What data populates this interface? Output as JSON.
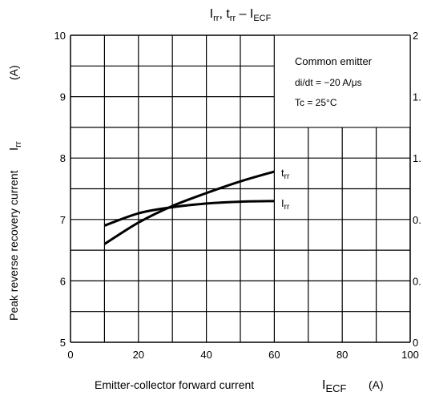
{
  "chart_data": {
    "type": "line",
    "title": {
      "main": "I",
      "sub1": "rr",
      "mid": ", t",
      "sub2": "rr",
      "dash": " – I",
      "sub3": "ECF"
    },
    "xlabel": {
      "text": "Emitter-collector forward current",
      "sym": "I",
      "sub": "ECF",
      "unit": "(A)"
    },
    "ylabel": {
      "text": "Peak reverse recovery current",
      "sym": "I",
      "sub": "rr",
      "unit": "(A)"
    },
    "xlim": [
      0,
      100
    ],
    "ylim": [
      5,
      10
    ],
    "x_ticks": [
      "0",
      "20",
      "40",
      "60",
      "80",
      "100"
    ],
    "y_ticks": [
      "5",
      "6",
      "7",
      "8",
      "9",
      "10"
    ],
    "right_ticks_visible": [
      "0",
      "0.",
      "0.",
      "1.",
      "1.",
      "2"
    ],
    "grid": true,
    "annotation": {
      "line1": "Common emitter",
      "line2": "di/dt = −20 A/μs",
      "line3": "Tc = 25°C"
    },
    "series": [
      {
        "name": "t",
        "name_sub": "rr",
        "x": [
          10,
          20,
          30,
          40,
          50,
          60
        ],
        "y": [
          6.6,
          6.95,
          7.22,
          7.43,
          7.62,
          7.78
        ]
      },
      {
        "name": "I",
        "name_sub": "rr",
        "x": [
          10,
          20,
          30,
          40,
          50,
          60
        ],
        "y": [
          6.9,
          7.1,
          7.2,
          7.26,
          7.29,
          7.3
        ]
      }
    ]
  }
}
